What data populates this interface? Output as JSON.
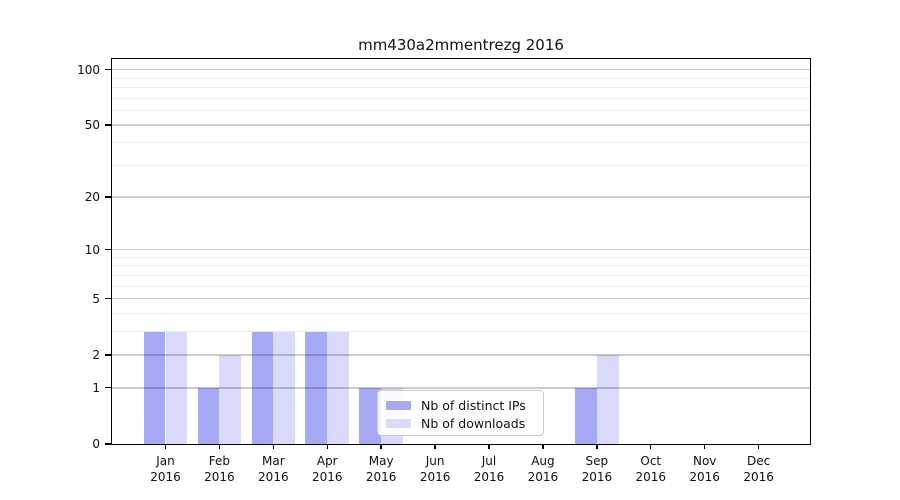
{
  "title": "mm430a2mmentrezg 2016",
  "chart_data": {
    "type": "bar",
    "title": "mm430a2mmentrezg 2016",
    "categories": [
      "Jan",
      "Feb",
      "Mar",
      "Apr",
      "May",
      "Jun",
      "Jul",
      "Aug",
      "Sep",
      "Oct",
      "Nov",
      "Dec"
    ],
    "x_year_label": "2016",
    "series": [
      {
        "name": "Nb of distinct IPs",
        "color": "#a8a9f5",
        "values": [
          3,
          1,
          3,
          3,
          1,
          0,
          0,
          0,
          1,
          0,
          0,
          0
        ]
      },
      {
        "name": "Nb of downloads",
        "color": "#dadbfa",
        "values": [
          3,
          2,
          3,
          3,
          1,
          0,
          0,
          0,
          2,
          0,
          0,
          0
        ]
      }
    ],
    "xlabel": "",
    "ylabel": "",
    "y_scale": "log1p",
    "ylim": [
      0,
      113
    ],
    "y_ticks": [
      0,
      1,
      2,
      5,
      10,
      20,
      50,
      100
    ],
    "y_minor_gridlines": [
      3,
      4,
      6,
      7,
      8,
      9,
      30,
      40,
      60,
      70,
      80,
      90
    ],
    "grid": "horizontal-major-and-minor",
    "legend_position": "lower-center-inside",
    "frame_color": "#000000",
    "major_grid_color": "#cccccc",
    "minor_grid_color": "#ededed"
  }
}
